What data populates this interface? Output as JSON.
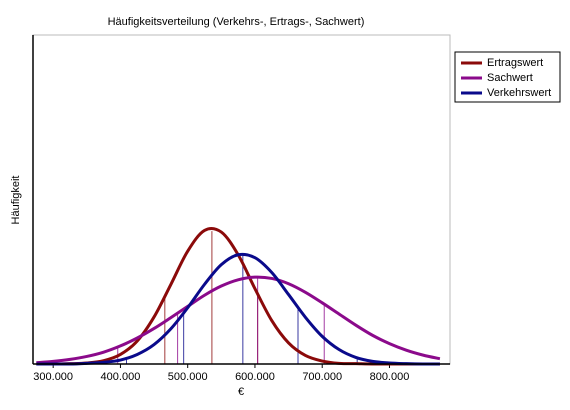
{
  "chart_data": {
    "type": "line",
    "title": "Häufigkeitsverteilung (Verkehrs-, Ertrags-, Sachwert)",
    "x_label": "€",
    "y_label": "Häufigkeit",
    "x": [
      275000,
      300000,
      325000,
      350000,
      375000,
      400000,
      425000,
      450000,
      475000,
      500000,
      525000,
      550000,
      575000,
      600000,
      625000,
      650000,
      675000,
      700000,
      725000,
      750000,
      775000,
      800000,
      825000,
      850000,
      875000
    ],
    "series": [
      {
        "name": "Ertragswert",
        "color": "#8b0a0a",
        "values": [
          0.0,
          0.0,
          0.1,
          0.3,
          1.0,
          2.9,
          7.0,
          14.3,
          24.2,
          34.3,
          40.6,
          40.1,
          33.2,
          22.9,
          13.2,
          6.4,
          2.6,
          0.9,
          0.2,
          0.1,
          0.0,
          0.0,
          0.0,
          0.0,
          0.0
        ],
        "markers": [
          466000,
          536000,
          604000
        ]
      },
      {
        "name": "Sachwert",
        "color": "#8b0a8b",
        "values": [
          0.4,
          0.8,
          1.4,
          2.3,
          3.6,
          5.5,
          7.9,
          10.8,
          14.1,
          17.5,
          20.9,
          23.7,
          25.6,
          26.4,
          26.0,
          24.4,
          21.8,
          18.6,
          15.2,
          11.8,
          8.7,
          6.2,
          4.2,
          2.7,
          1.6
        ],
        "markers": [
          396000,
          485000,
          604000,
          703000
        ]
      },
      {
        "name": "Verkehrswert",
        "color": "#0a0a8b",
        "values": [
          0.0,
          0.0,
          0.0,
          0.2,
          0.5,
          1.2,
          2.9,
          5.9,
          10.7,
          17.1,
          24.2,
          30.2,
          33.2,
          32.3,
          27.8,
          21.1,
          14.2,
          8.4,
          4.4,
          2.0,
          0.8,
          0.3,
          0.1,
          0.0,
          0.0
        ],
        "markers": [
          409000,
          494000,
          582000,
          664000,
          752000
        ]
      }
    ],
    "xlim": [
      270000,
      890000
    ],
    "xticks": [
      {
        "value": 300000,
        "label": "300.000"
      },
      {
        "value": 400000,
        "label": "400.000"
      },
      {
        "value": 500000,
        "label": "500.000"
      },
      {
        "value": 600000,
        "label": "600.000"
      },
      {
        "value": 700000,
        "label": "700.000"
      },
      {
        "value": 800000,
        "label": "800.000"
      }
    ],
    "ylim": [
      0,
      100
    ],
    "legend": "top-right"
  }
}
